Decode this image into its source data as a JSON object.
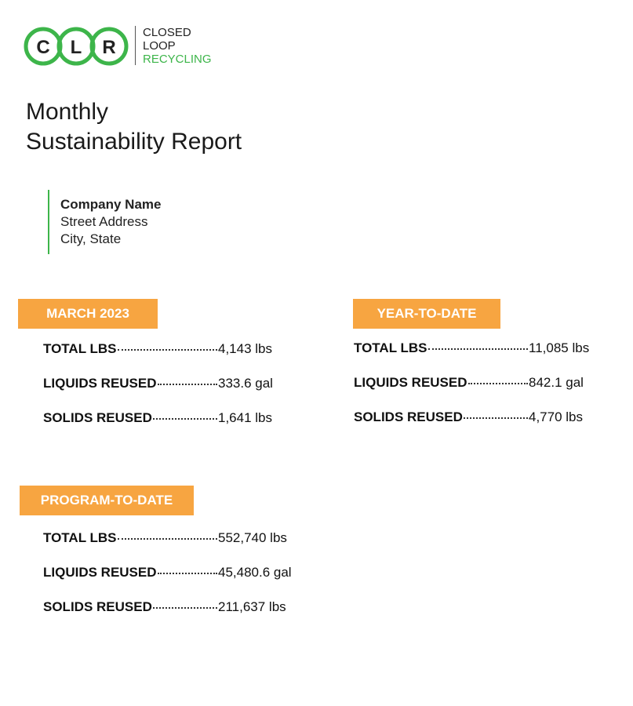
{
  "logo": {
    "letters": [
      "C",
      "L",
      "R"
    ],
    "name": [
      "CLOSED",
      "LOOP",
      "RECYCLING"
    ]
  },
  "header": {
    "title": [
      "Monthly",
      "Sustainability Report"
    ]
  },
  "address": {
    "company": "Company Name",
    "street": "Street Address",
    "city": "City, State"
  },
  "sections": [
    {
      "heading": "MARCH 2023",
      "rows": [
        {
          "label": "TOTAL LBS",
          "value": "4,143 lbs"
        },
        {
          "label": "LIQUIDS REUSED",
          "value": "333.6 gal"
        },
        {
          "label": "SOLIDS REUSED",
          "value": "1,641 lbs"
        }
      ]
    },
    {
      "heading": "YEAR-TO-DATE",
      "rows": [
        {
          "label": "TOTAL LBS",
          "value": "11,085 lbs"
        },
        {
          "label": "LIQUIDS REUSED",
          "value": "842.1 gal"
        },
        {
          "label": "SOLIDS REUSED",
          "value": "4,770 lbs"
        }
      ]
    },
    {
      "heading": "PROGRAM-TO-DATE",
      "rows": [
        {
          "label": "TOTAL LBS",
          "value": "552,740 lbs"
        },
        {
          "label": "LIQUIDS REUSED",
          "value": "45,480.6 gal"
        },
        {
          "label": "SOLIDS REUSED",
          "value": "211,637 lbs"
        }
      ]
    }
  ]
}
